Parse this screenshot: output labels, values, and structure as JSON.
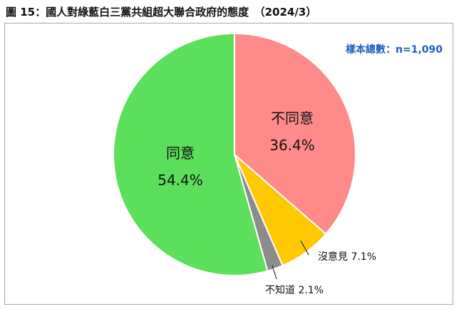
{
  "figure": {
    "title": "圖 15：國人對綠藍白三黨共組超大聯合政府的態度　（2024/3）",
    "sample_note": "樣本總數：n=1,090"
  },
  "chart_data": {
    "type": "pie",
    "start_angle_deg": 0,
    "direction": "clockwise",
    "slices": [
      {
        "label": "不同意",
        "value": 36.4,
        "value_label": "36.4%",
        "color": "#ff8a8a",
        "label_inside": true
      },
      {
        "label": "沒意見",
        "value": 7.1,
        "value_label": "7.1%",
        "color": "#ffc800",
        "label_inside": false
      },
      {
        "label": "不知道",
        "value": 2.1,
        "value_label": "2.1%",
        "color": "#8c8c8c",
        "label_inside": false
      },
      {
        "label": "同意",
        "value": 54.4,
        "value_label": "54.4%",
        "color": "#5ce05c",
        "label_inside": true
      }
    ]
  }
}
